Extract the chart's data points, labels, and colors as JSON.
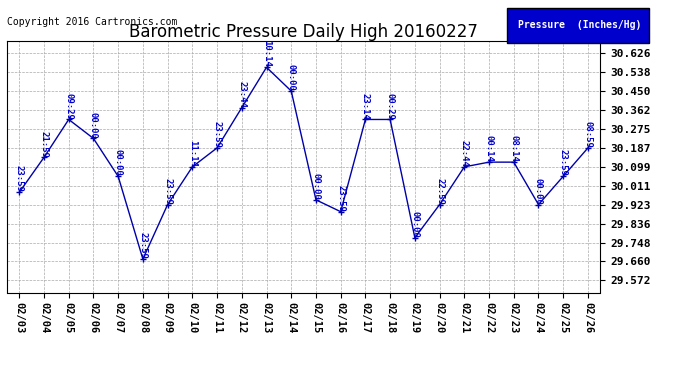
{
  "title": "Barometric Pressure Daily High 20160227",
  "copyright": "Copyright 2016 Cartronics.com",
  "legend_label": "Pressure  (Inches/Hg)",
  "dates": [
    "02/03",
    "02/04",
    "02/05",
    "02/06",
    "02/07",
    "02/08",
    "02/09",
    "02/10",
    "02/11",
    "02/12",
    "02/13",
    "02/14",
    "02/15",
    "02/16",
    "02/17",
    "02/18",
    "02/19",
    "02/20",
    "02/21",
    "02/22",
    "02/23",
    "02/24",
    "02/25",
    "02/26"
  ],
  "values": [
    29.981,
    30.143,
    30.319,
    30.231,
    30.055,
    29.671,
    29.924,
    30.099,
    30.187,
    30.374,
    30.561,
    30.451,
    29.946,
    29.891,
    30.319,
    30.319,
    29.77,
    29.924,
    30.099,
    30.121,
    30.121,
    29.924,
    30.055,
    30.187
  ],
  "time_labels": [
    "23:59",
    "21:59",
    "09:29",
    "00:00",
    "00:00",
    "23:59",
    "23:59",
    "11:14",
    "23:59",
    "23:44",
    "10:14",
    "00:00",
    "00:00",
    "23:59",
    "23:14",
    "00:29",
    "00:00",
    "22:59",
    "22:44",
    "00:14",
    "08:14",
    "00:00",
    "23:59",
    "08:59"
  ],
  "yticks": [
    29.572,
    29.66,
    29.748,
    29.836,
    29.923,
    30.011,
    30.099,
    30.187,
    30.275,
    30.362,
    30.45,
    30.538,
    30.626
  ],
  "ymin": 29.516,
  "ymax": 30.682,
  "line_color": "#0000AA",
  "marker_color": "#0000AA",
  "bg_color": "#FFFFFF",
  "grid_color": "#AAAAAA",
  "title_color": "#000000",
  "copyright_color": "#000000",
  "legend_bg": "#0000CC",
  "legend_text_color": "#FFFFFF",
  "label_color": "#0000CC",
  "label_fontsize": 6.5,
  "title_fontsize": 12,
  "ytick_fontsize": 8,
  "xtick_fontsize": 7.5
}
